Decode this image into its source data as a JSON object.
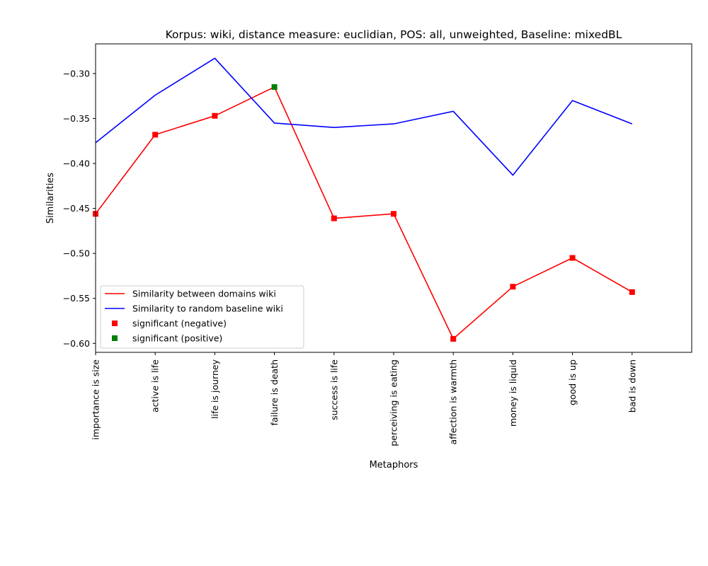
{
  "chart_data": {
    "type": "line",
    "title": "Korpus: wiki, distance measure: euclidian, POS: all, unweighted, Baseline: mixedBL",
    "xlabel": "Metaphors",
    "ylabel": "Similarities",
    "categories": [
      "importance is size",
      "active is life",
      "life is journey",
      "failure is death",
      "success is life",
      "perceiving is eating",
      "affection is warmth",
      "money is liquid",
      "good is up",
      "bad is down"
    ],
    "ylim": [
      -0.61,
      -0.267
    ],
    "yticks": [
      -0.6,
      -0.55,
      -0.5,
      -0.45,
      -0.4,
      -0.35,
      -0.3
    ],
    "ytick_labels": [
      "−0.60",
      "−0.55",
      "−0.50",
      "−0.45",
      "−0.40",
      "−0.35",
      "−0.30"
    ],
    "grid": false,
    "legend_position": "lower-left",
    "series": [
      {
        "name": "Similarity between domains wiki",
        "color": "#ff0000",
        "style": "line",
        "values": [
          -0.456,
          -0.368,
          -0.347,
          -0.315,
          -0.461,
          -0.456,
          -0.595,
          -0.537,
          -0.505,
          -0.543
        ]
      },
      {
        "name": "Similarity to random baseline wiki",
        "color": "#0000ff",
        "style": "line",
        "values": [
          -0.377,
          -0.324,
          -0.283,
          -0.355,
          -0.36,
          -0.356,
          -0.342,
          -0.413,
          -0.33,
          -0.356
        ]
      }
    ],
    "markers": [
      {
        "name": "significant (negative)",
        "color": "#ff0000",
        "points": [
          {
            "category": "importance is size",
            "value": -0.456
          },
          {
            "category": "active is life",
            "value": -0.368
          },
          {
            "category": "life is journey",
            "value": -0.347
          },
          {
            "category": "success is life",
            "value": -0.461
          },
          {
            "category": "perceiving is eating",
            "value": -0.456
          },
          {
            "category": "affection is warmth",
            "value": -0.595
          },
          {
            "category": "money is liquid",
            "value": -0.537
          },
          {
            "category": "good is up",
            "value": -0.505
          },
          {
            "category": "bad is down",
            "value": -0.543
          }
        ]
      },
      {
        "name": "significant (positive)",
        "color": "#008000",
        "points": [
          {
            "category": "failure is death",
            "value": -0.315
          }
        ]
      }
    ]
  }
}
